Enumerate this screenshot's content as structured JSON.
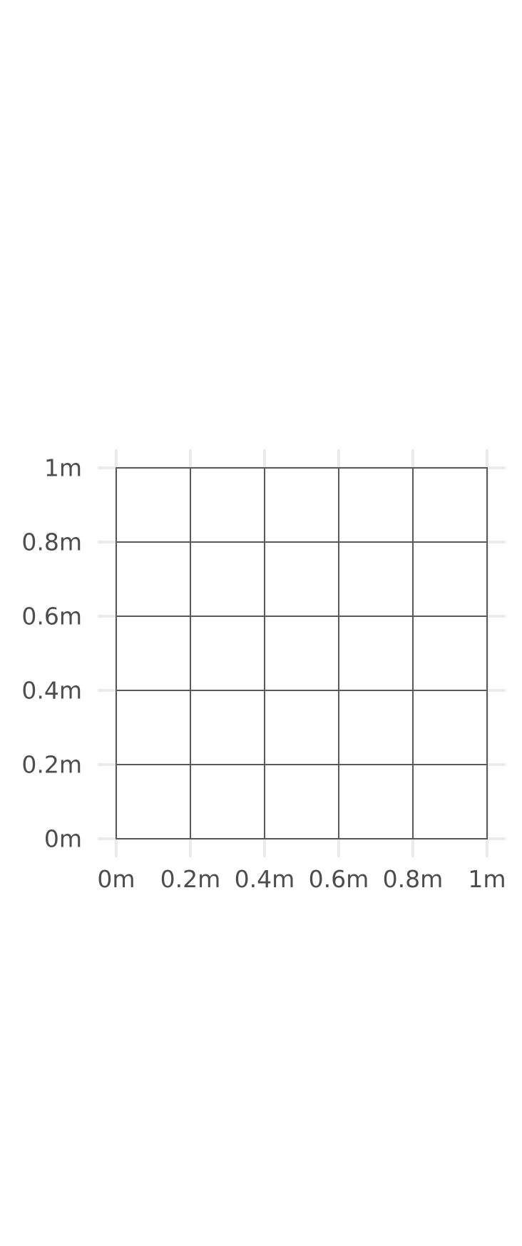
{
  "chart_data": {
    "type": "heatmap",
    "title": "",
    "xlabel": "",
    "ylabel": "",
    "xlim": [
      0,
      1
    ],
    "ylim": [
      0,
      1
    ],
    "x_ticks": [
      0,
      0.2,
      0.4,
      0.6,
      0.8,
      1
    ],
    "y_ticks": [
      0,
      0.2,
      0.4,
      0.6,
      0.8,
      1
    ],
    "x_tick_labels": [
      "0m",
      "0.2m",
      "0.4m",
      "0.6m",
      "0.8m",
      "1m"
    ],
    "y_tick_labels": [
      "0m",
      "0.2m",
      "0.4m",
      "0.6m",
      "0.8m",
      "1m"
    ],
    "cell_edges_x": [
      0,
      0.2,
      0.4,
      0.6,
      0.8,
      1
    ],
    "cell_edges_y": [
      0,
      0.2,
      0.4,
      0.6,
      0.8,
      1
    ],
    "cell_fill_color": "#ffffff",
    "cell_border_color": "#595959",
    "grid": true,
    "grid_color": "#ebebeb",
    "legend": "none"
  }
}
